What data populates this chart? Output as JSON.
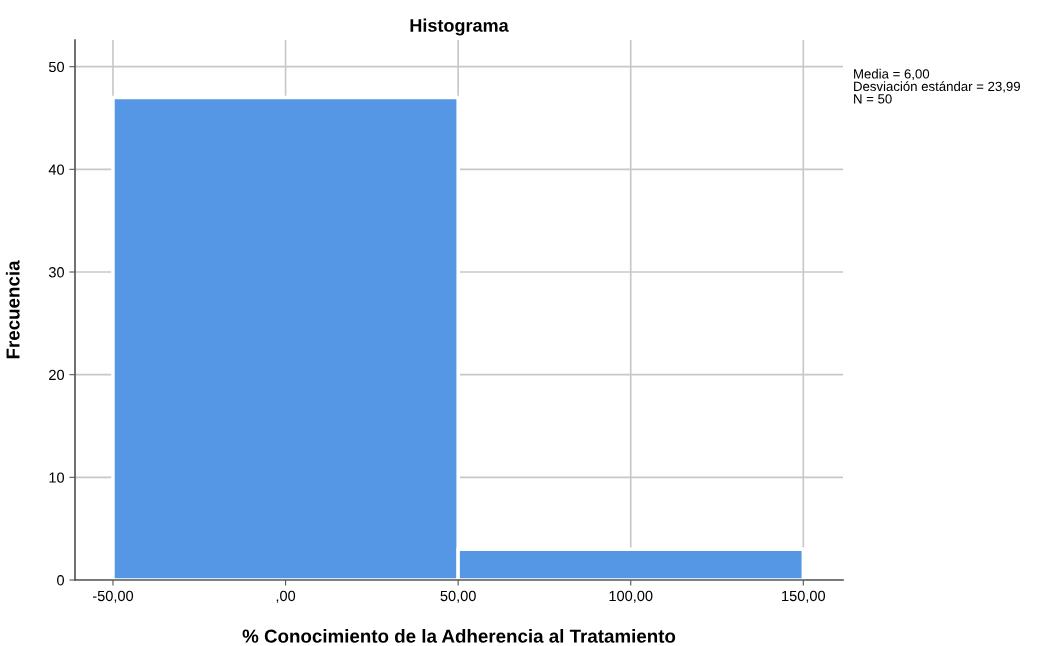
{
  "chart_data": {
    "type": "histogram",
    "title": "Histograma",
    "xlabel": "% Conocimiento de la Adherencia al Tratamiento",
    "ylabel": "Frecuencia",
    "bins": [
      -50,
      50,
      150
    ],
    "values": [
      47,
      3
    ],
    "color": "#5596e5",
    "xlim": [
      -61,
      161.5
    ],
    "xticks": [
      {
        "value": -50,
        "label": "-50,00"
      },
      {
        "value": 0,
        "label": ",00"
      },
      {
        "value": 50,
        "label": "50,00"
      },
      {
        "value": 100,
        "label": "100,00"
      },
      {
        "value": 150,
        "label": "150,00"
      }
    ],
    "ylim": [
      0,
      52.6
    ],
    "yticks": [
      0,
      10,
      20,
      30,
      40,
      50
    ],
    "grid": true,
    "annotations": [
      "Media = 6,00",
      "Desviación estándar = 23,99",
      "N = 50"
    ]
  }
}
